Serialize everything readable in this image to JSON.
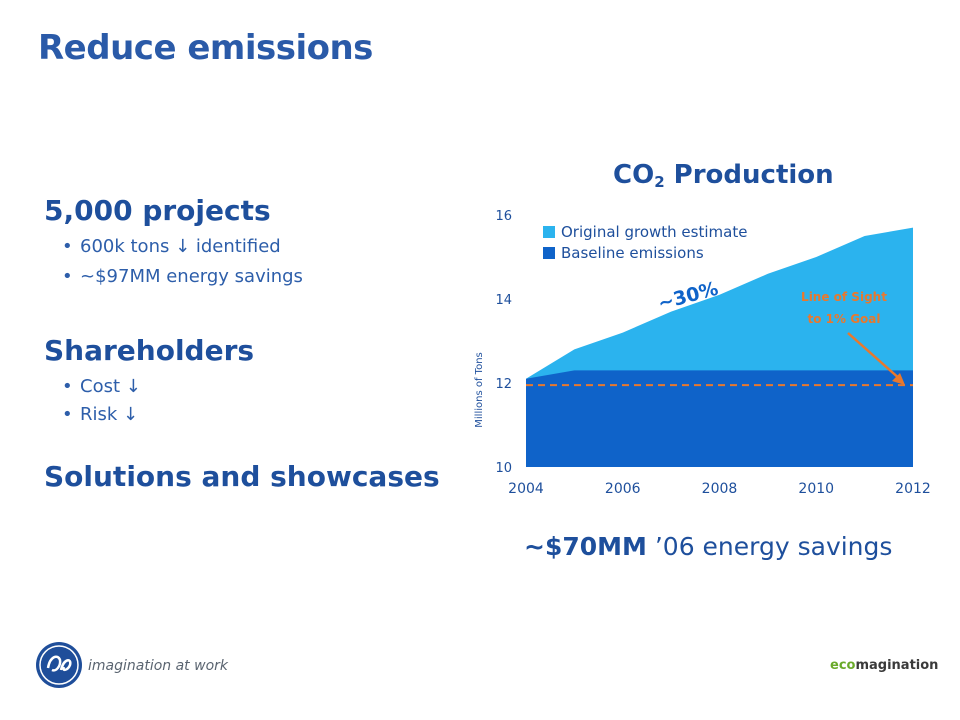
{
  "slide": {
    "title": "Reduce emissions",
    "sections": [
      {
        "heading": "5,000 projects",
        "bullets": [
          "600k tons ↓ identified",
          "~$97MM energy savings"
        ]
      },
      {
        "heading": "Shareholders",
        "bullets": [
          "Cost ↓",
          "Risk ↓"
        ]
      },
      {
        "heading": "Solutions and showcases",
        "bullets": []
      }
    ],
    "chart_title_main": "CO",
    "chart_title_sub": "2",
    "chart_title_rest": " Production",
    "savings_bold": "~$70MM",
    "savings_rest": " ’06 energy savings",
    "footer_tagline": "imagination at work",
    "footer_brand_eco": "eco",
    "footer_brand_rest": "magination"
  },
  "chart_data": {
    "type": "area",
    "title": "CO2 Production",
    "ylabel": "Millions of Tons",
    "xlim": [
      2004,
      2012
    ],
    "ylim": [
      10,
      16
    ],
    "x_ticks": [
      "2004",
      "2006",
      "2008",
      "2010",
      "2012"
    ],
    "y_ticks": [
      "10",
      "12",
      "14",
      "16"
    ],
    "x": [
      2004,
      2005,
      2006,
      2007,
      2008,
      2009,
      2010,
      2011,
      2012
    ],
    "series": [
      {
        "name": "Original growth estimate",
        "color": "#2bb3ee",
        "values": [
          12.1,
          12.8,
          13.2,
          13.7,
          14.1,
          14.6,
          15.0,
          15.5,
          15.7
        ]
      },
      {
        "name": "Baseline emissions",
        "color": "#0f63c9",
        "values": [
          12.1,
          12.3,
          12.3,
          12.3,
          12.3,
          12.3,
          12.3,
          12.3,
          12.3
        ]
      }
    ],
    "goal_line": {
      "value": 11.95,
      "color": "#e9782d"
    },
    "annotations": {
      "reduction": "~30%",
      "goal_line1": "Line of Sight",
      "goal_line2": "to 1% Goal"
    },
    "legend_position": "top-left"
  }
}
